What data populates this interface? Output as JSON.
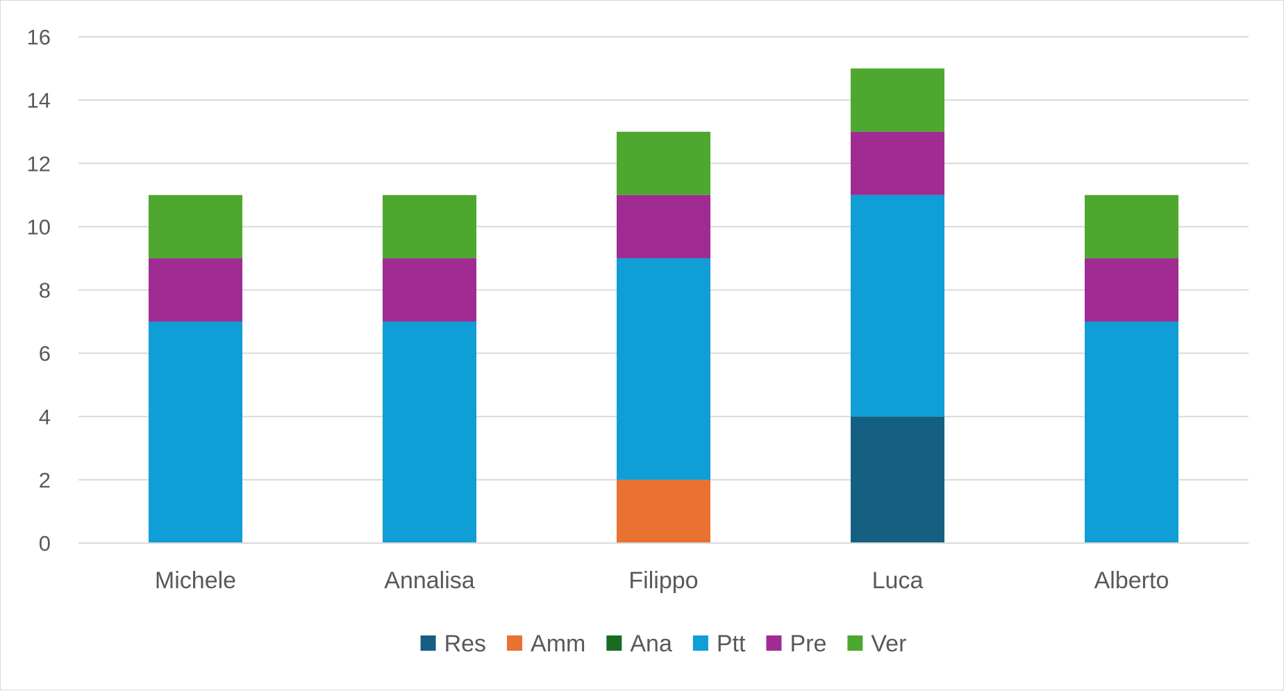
{
  "chart_data": {
    "type": "bar",
    "stacked": true,
    "categories": [
      "Michele",
      "Annalisa",
      "Filippo",
      "Luca",
      "Alberto"
    ],
    "series": [
      {
        "name": "Res",
        "color": "#156082",
        "values": [
          0,
          0,
          0,
          4,
          0
        ]
      },
      {
        "name": "Amm",
        "color": "#E97132",
        "values": [
          0,
          0,
          2,
          0,
          0
        ]
      },
      {
        "name": "Ana",
        "color": "#196B24",
        "values": [
          0,
          0,
          0,
          0,
          0
        ]
      },
      {
        "name": "Ptt",
        "color": "#0F9ED5",
        "values": [
          7,
          7,
          7,
          7,
          7
        ]
      },
      {
        "name": "Pre",
        "color": "#A02B93",
        "values": [
          2,
          2,
          2,
          2,
          2
        ]
      },
      {
        "name": "Ver",
        "color": "#4EA72E",
        "values": [
          2,
          2,
          2,
          2,
          2
        ]
      }
    ],
    "ylim": [
      0,
      16
    ],
    "yticks": [
      0,
      2,
      4,
      6,
      8,
      10,
      12,
      14,
      16
    ],
    "grid": true,
    "legend_position": "bottom",
    "title": "",
    "xlabel": "",
    "ylabel": ""
  }
}
